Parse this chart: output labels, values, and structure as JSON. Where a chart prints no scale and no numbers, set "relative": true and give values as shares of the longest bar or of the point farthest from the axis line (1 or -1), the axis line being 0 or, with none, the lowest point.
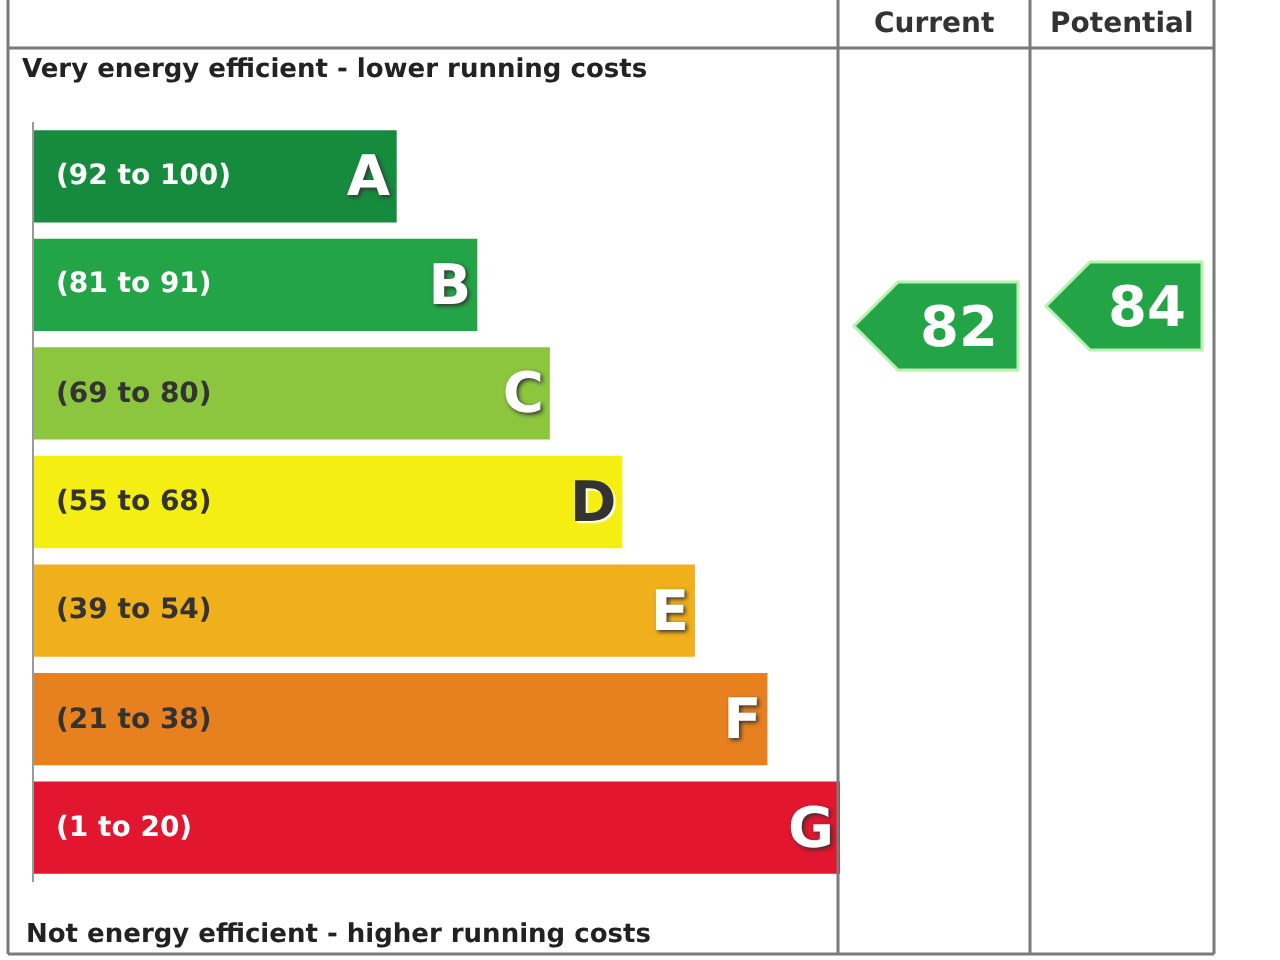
{
  "chart_data": {
    "type": "bar",
    "orientation": "horizontal",
    "relative": true,
    "tick_labels": false,
    "title": "Very energy efficient - lower running costs",
    "xlabel": "Not energy efficient - higher running costs",
    "categories": [
      "A",
      "B",
      "C",
      "D",
      "E",
      "F",
      "G"
    ],
    "values": [
      0.45,
      0.55,
      0.64,
      0.73,
      0.82,
      0.91,
      1
    ],
    "colors": [
      "#178b3d",
      "#23a547",
      "#8cc63e",
      "#f4ee12",
      "#f0b01b",
      "#e7811f",
      "#e2162f"
    ],
    "annotations": [
      "Current",
      "Potential",
      "82",
      "84",
      "(92 to 100)",
      "(81 to 91)",
      "(69 to 80)",
      "(55 to 68)",
      "(39 to 54)",
      "(21 to 38)",
      "(1 to 20)"
    ]
  }
}
